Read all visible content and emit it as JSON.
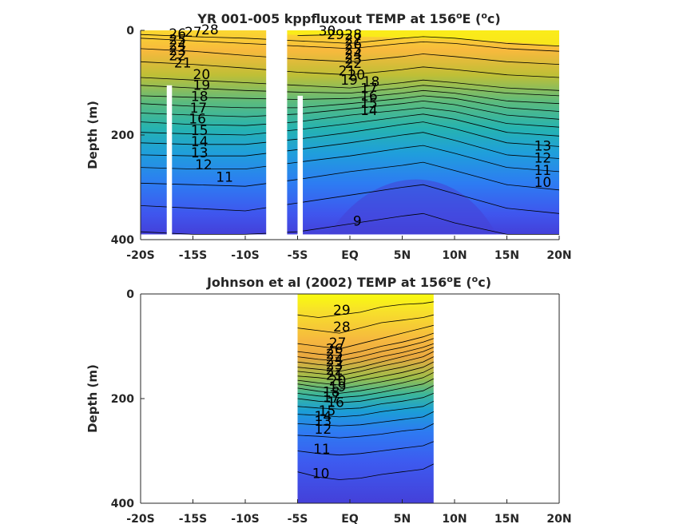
{
  "chart_data": [
    {
      "type": "heatmap",
      "title": "YR 001-005 kppfluxout TEMP at 156",
      "title_superscript": "o",
      "title_tail": "E (",
      "title_unit_sup": "o",
      "title_unit_tail": "c)",
      "ylabel": "Depth (m)",
      "xlim": [
        -20,
        20
      ],
      "ylim": [
        400,
        0
      ],
      "x_ticks": [
        -20,
        -15,
        -10,
        -5,
        0,
        5,
        10,
        15,
        20
      ],
      "x_tick_labels": [
        "-20S",
        "-15S",
        "-10S",
        "-5S",
        "EQ",
        "5N",
        "10N",
        "15N",
        "20N"
      ],
      "y_ticks": [
        0,
        200,
        400
      ],
      "y_tick_labels": [
        "0",
        "200",
        "400"
      ],
      "data_x_range": [
        -20,
        20
      ],
      "data_depth_max": 390,
      "gaps": [
        {
          "x_start": -17.5,
          "x_end": -17.0,
          "depth_start": 105
        },
        {
          "x_start": -8.0,
          "x_end": -6.0,
          "depth_start": 0
        },
        {
          "x_start": -5.0,
          "x_end": -4.5,
          "depth_start": 125
        }
      ],
      "contour_levels": [
        9,
        10,
        11,
        12,
        13,
        14,
        15,
        16,
        17,
        18,
        19,
        20,
        21,
        22,
        23,
        24,
        25,
        26,
        27,
        28,
        29,
        30
      ],
      "depth_profile": {
        "x": [
          -20,
          -15,
          -10,
          -5,
          0,
          5,
          7,
          10,
          15,
          20
        ],
        "temperature_depth": {
          "30": [
            null,
            null,
            null,
            10,
            8,
            null,
            null,
            null,
            null,
            null
          ],
          "28": [
            8,
            12,
            15,
            20,
            25,
            15,
            12,
            15,
            25,
            30
          ],
          "27": [
            15,
            20,
            25,
            30,
            35,
            25,
            22,
            25,
            35,
            40
          ],
          "25": [
            35,
            40,
            48,
            55,
            60,
            50,
            45,
            50,
            60,
            65
          ],
          "23": [
            60,
            65,
            72,
            80,
            85,
            75,
            70,
            75,
            85,
            90
          ],
          "21": [
            90,
            95,
            100,
            105,
            110,
            100,
            95,
            100,
            110,
            115
          ],
          "20": [
            105,
            110,
            115,
            118,
            120,
            110,
            105,
            110,
            120,
            125
          ],
          "19": [
            125,
            128,
            130,
            132,
            130,
            120,
            115,
            120,
            135,
            140
          ],
          "18": [
            140,
            145,
            148,
            148,
            140,
            130,
            125,
            130,
            148,
            155
          ],
          "17": [
            158,
            162,
            165,
            160,
            150,
            140,
            135,
            142,
            162,
            170
          ],
          "16": [
            175,
            180,
            182,
            175,
            162,
            152,
            148,
            155,
            178,
            185
          ],
          "15": [
            195,
            198,
            200,
            190,
            178,
            165,
            160,
            170,
            195,
            202
          ],
          "14": [
            215,
            218,
            218,
            208,
            195,
            180,
            175,
            188,
            215,
            222
          ],
          "13": [
            238,
            240,
            240,
            228,
            215,
            200,
            195,
            210,
            238,
            245
          ],
          "12": [
            262,
            265,
            265,
            252,
            240,
            225,
            220,
            235,
            262,
            270
          ],
          "11": [
            292,
            295,
            298,
            285,
            270,
            258,
            252,
            268,
            295,
            305
          ],
          "10": [
            335,
            340,
            345,
            330,
            315,
            300,
            295,
            312,
            340,
            350
          ],
          "9": [
            385,
            390,
            395,
            385,
            370,
            355,
            350,
            368,
            395,
            400
          ]
        }
      },
      "labels": [
        {
          "text": "28",
          "x": -14.2,
          "depth": 8
        },
        {
          "text": "27",
          "x": -15.8,
          "depth": 12
        },
        {
          "text": "26",
          "x": -17.3,
          "depth": 15
        },
        {
          "text": "25",
          "x": -17.3,
          "depth": 27
        },
        {
          "text": "24",
          "x": -17.3,
          "depth": 37
        },
        {
          "text": "23",
          "x": -17.3,
          "depth": 47
        },
        {
          "text": "22",
          "x": -17.3,
          "depth": 57
        },
        {
          "text": "21",
          "x": -16.8,
          "depth": 71
        },
        {
          "text": "20",
          "x": -15.0,
          "depth": 93
        },
        {
          "text": "19",
          "x": -15.0,
          "depth": 114
        },
        {
          "text": "18",
          "x": -15.2,
          "depth": 135
        },
        {
          "text": "17",
          "x": -15.3,
          "depth": 157
        },
        {
          "text": "16",
          "x": -15.4,
          "depth": 178
        },
        {
          "text": "15",
          "x": -15.2,
          "depth": 200
        },
        {
          "text": "14",
          "x": -15.2,
          "depth": 221
        },
        {
          "text": "13",
          "x": -15.2,
          "depth": 243
        },
        {
          "text": "12",
          "x": -14.8,
          "depth": 266
        },
        {
          "text": "11",
          "x": -12.8,
          "depth": 289
        },
        {
          "text": "30",
          "x": -3.0,
          "depth": 10
        },
        {
          "text": "29",
          "x": -2.2,
          "depth": 17
        },
        {
          "text": "28",
          "x": -0.5,
          "depth": 17
        },
        {
          "text": "27",
          "x": -0.5,
          "depth": 25
        },
        {
          "text": "26",
          "x": -0.5,
          "depth": 35
        },
        {
          "text": "25",
          "x": -0.5,
          "depth": 45
        },
        {
          "text": "24",
          "x": -0.5,
          "depth": 54
        },
        {
          "text": "23",
          "x": -0.5,
          "depth": 63
        },
        {
          "text": "22",
          "x": -0.5,
          "depth": 72
        },
        {
          "text": "21",
          "x": -1.1,
          "depth": 86
        },
        {
          "text": "20",
          "x": -0.2,
          "depth": 94
        },
        {
          "text": "19",
          "x": -0.9,
          "depth": 104
        },
        {
          "text": "18",
          "x": 1.2,
          "depth": 107
        },
        {
          "text": "17",
          "x": 1.0,
          "depth": 120
        },
        {
          "text": "16",
          "x": 1.0,
          "depth": 134
        },
        {
          "text": "15",
          "x": 1.0,
          "depth": 148
        },
        {
          "text": "14",
          "x": 1.0,
          "depth": 162
        },
        {
          "text": "13",
          "x": 17.6,
          "depth": 230
        },
        {
          "text": "12",
          "x": 17.6,
          "depth": 253
        },
        {
          "text": "11",
          "x": 17.6,
          "depth": 276
        },
        {
          "text": "10",
          "x": 17.6,
          "depth": 299
        },
        {
          "text": "9",
          "x": 0.3,
          "depth": 373
        }
      ]
    },
    {
      "type": "heatmap",
      "title": "Johnson et al (2002) TEMP at 156",
      "title_superscript": "o",
      "title_tail": "E (",
      "title_unit_sup": "o",
      "title_unit_tail": "c)",
      "ylabel": "Depth (m)",
      "xlim": [
        -20,
        20
      ],
      "ylim": [
        400,
        0
      ],
      "x_ticks": [
        -20,
        -15,
        -10,
        -5,
        0,
        5,
        10,
        15,
        20
      ],
      "x_tick_labels": [
        "-20S",
        "-15S",
        "-10S",
        "-5S",
        "EQ",
        "5N",
        "10N",
        "15N",
        "20N"
      ],
      "y_ticks": [
        0,
        200,
        400
      ],
      "y_tick_labels": [
        "0",
        "200",
        "400"
      ],
      "data_x_range": [
        -5,
        8
      ],
      "data_depth_max": 400,
      "contour_levels": [
        10,
        11,
        12,
        13,
        14,
        15,
        16,
        17,
        18,
        19,
        20,
        21,
        22,
        23,
        24,
        25,
        26,
        27,
        28,
        29
      ],
      "depth_profile": {
        "x": [
          -5,
          -3,
          -1,
          1,
          3,
          5,
          7,
          8
        ],
        "temperature_depth": {
          "29": [
            40,
            45,
            40,
            35,
            25,
            20,
            18,
            15
          ],
          "28": [
            65,
            70,
            75,
            65,
            55,
            50,
            45,
            40
          ],
          "27": [
            95,
            100,
            105,
            95,
            85,
            75,
            65,
            60
          ],
          "26": [
            110,
            115,
            118,
            110,
            100,
            92,
            82,
            75
          ],
          "25": [
            120,
            125,
            128,
            120,
            110,
            102,
            92,
            85
          ],
          "24": [
            130,
            135,
            138,
            130,
            120,
            112,
            102,
            95
          ],
          "23": [
            140,
            144,
            148,
            140,
            130,
            120,
            110,
            102
          ],
          "22": [
            148,
            152,
            156,
            148,
            138,
            130,
            120,
            110
          ],
          "21": [
            157,
            160,
            165,
            157,
            148,
            140,
            130,
            120
          ],
          "20": [
            165,
            170,
            174,
            165,
            158,
            150,
            140,
            130
          ],
          "19": [
            172,
            178,
            182,
            175,
            168,
            160,
            150,
            140
          ],
          "18": [
            180,
            186,
            190,
            185,
            178,
            170,
            160,
            150
          ],
          "17": [
            190,
            195,
            198,
            195,
            188,
            180,
            172,
            162
          ],
          "16": [
            200,
            205,
            208,
            205,
            198,
            192,
            185,
            175
          ],
          "15": [
            215,
            218,
            220,
            218,
            210,
            205,
            198,
            190
          ],
          "14": [
            230,
            232,
            235,
            232,
            225,
            220,
            215,
            205
          ],
          "13": [
            248,
            250,
            252,
            250,
            245,
            240,
            235,
            225
          ],
          "12": [
            270,
            272,
            275,
            272,
            268,
            262,
            258,
            248
          ],
          "11": [
            300,
            305,
            308,
            305,
            300,
            295,
            290,
            282
          ],
          "10": [
            340,
            350,
            355,
            352,
            345,
            340,
            335,
            325
          ]
        }
      },
      "labels": [
        {
          "text": "29",
          "x": -1.6,
          "depth": 40
        },
        {
          "text": "28",
          "x": -1.6,
          "depth": 72
        },
        {
          "text": "27",
          "x": -2.0,
          "depth": 102
        },
        {
          "text": "26",
          "x": -2.3,
          "depth": 114
        },
        {
          "text": "25",
          "x": -2.3,
          "depth": 124
        },
        {
          "text": "24",
          "x": -2.3,
          "depth": 134
        },
        {
          "text": "23",
          "x": -2.3,
          "depth": 144
        },
        {
          "text": "22",
          "x": -2.3,
          "depth": 154
        },
        {
          "text": "21",
          "x": -2.3,
          "depth": 164
        },
        {
          "text": "20",
          "x": -2.0,
          "depth": 175
        },
        {
          "text": "19",
          "x": -2.0,
          "depth": 186
        },
        {
          "text": "18",
          "x": -2.6,
          "depth": 196
        },
        {
          "text": "17",
          "x": -2.6,
          "depth": 206
        },
        {
          "text": "16",
          "x": -2.2,
          "depth": 216
        },
        {
          "text": "15",
          "x": -3.0,
          "depth": 232
        },
        {
          "text": "14",
          "x": -3.4,
          "depth": 243
        },
        {
          "text": "13",
          "x": -3.4,
          "depth": 252
        },
        {
          "text": "12",
          "x": -3.4,
          "depth": 267
        },
        {
          "text": "11",
          "x": -3.5,
          "depth": 305
        },
        {
          "text": "10",
          "x": -3.6,
          "depth": 352
        }
      ]
    }
  ],
  "colors": {
    "warm": "#f9fb0e",
    "orange": "#f0b531",
    "mid": "#25b5aa",
    "deep": "#4051f0",
    "deepest": "#4338d6"
  }
}
